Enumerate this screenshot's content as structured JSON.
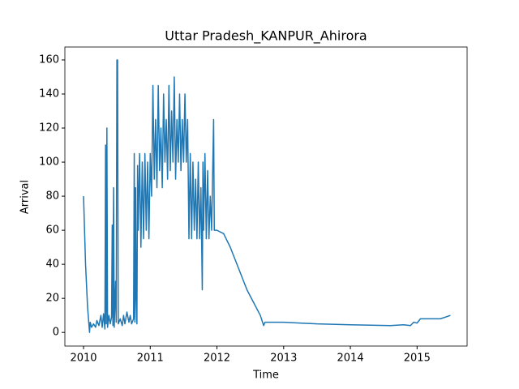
{
  "chart_data": {
    "type": "line",
    "title": "Uttar Pradesh_KANPUR_Ahirora",
    "x_label": "Time",
    "y_label": "Arrival",
    "x": [
      2010.0,
      2010.03,
      2010.06,
      2010.08,
      2010.09,
      2010.1,
      2010.12,
      2010.15,
      2010.18,
      2010.2,
      2010.23,
      2010.26,
      2010.28,
      2010.3,
      2010.32,
      2010.33,
      2010.34,
      2010.35,
      2010.36,
      2010.38,
      2010.4,
      2010.42,
      2010.43,
      2010.44,
      2010.45,
      2010.46,
      2010.48,
      2010.49,
      2010.5,
      2010.51,
      2010.52,
      2010.55,
      2010.58,
      2010.6,
      2010.62,
      2010.65,
      2010.68,
      2010.7,
      2010.72,
      2010.75,
      2010.76,
      2010.77,
      2010.78,
      2010.79,
      2010.8,
      2010.81,
      2010.82,
      2010.84,
      2010.86,
      2010.88,
      2010.9,
      2010.92,
      2010.94,
      2010.96,
      2010.98,
      2011.0,
      2011.02,
      2011.04,
      2011.06,
      2011.08,
      2011.1,
      2011.12,
      2011.14,
      2011.16,
      2011.18,
      2011.2,
      2011.22,
      2011.24,
      2011.26,
      2011.28,
      2011.3,
      2011.32,
      2011.34,
      2011.36,
      2011.38,
      2011.4,
      2011.42,
      2011.44,
      2011.46,
      2011.48,
      2011.5,
      2011.52,
      2011.54,
      2011.56,
      2011.58,
      2011.6,
      2011.62,
      2011.64,
      2011.66,
      2011.68,
      2011.7,
      2011.72,
      2011.74,
      2011.76,
      2011.78,
      2011.79,
      2011.8,
      2011.82,
      2011.84,
      2011.86,
      2011.88,
      2011.9,
      2011.92,
      2011.95,
      2011.96,
      2012.0,
      2012.1,
      2012.2,
      2012.3,
      2012.45,
      2012.65,
      2012.7,
      2012.72,
      2013.0,
      2013.5,
      2014.0,
      2014.6,
      2014.8,
      2014.9,
      2014.95,
      2015.0,
      2015.05,
      2015.15,
      2015.35,
      2015.5
    ],
    "series": [
      {
        "name": "Arrival",
        "color": "#1f77b4",
        "values": [
          80,
          40,
          15,
          5,
          0,
          6,
          3,
          5,
          3,
          7,
          4,
          10,
          3,
          11,
          2,
          110,
          5,
          120,
          3,
          10,
          5,
          9,
          63,
          4,
          85,
          3,
          30,
          6,
          160,
          160,
          5,
          8,
          4,
          10,
          5,
          12,
          6,
          10,
          5,
          8,
          105,
          6,
          85,
          20,
          5,
          98,
          60,
          105,
          50,
          100,
          55,
          105,
          60,
          100,
          55,
          105,
          80,
          145,
          90,
          125,
          85,
          145,
          95,
          120,
          85,
          140,
          100,
          125,
          90,
          145,
          95,
          130,
          100,
          150,
          90,
          125,
          100,
          140,
          95,
          125,
          100,
          140,
          100,
          125,
          55,
          105,
          55,
          100,
          60,
          90,
          55,
          100,
          55,
          85,
          25,
          100,
          60,
          105,
          55,
          95,
          55,
          80,
          60,
          125,
          60,
          60,
          58,
          50,
          40,
          25,
          10,
          4,
          6,
          6,
          5,
          4.5,
          4,
          4.5,
          4,
          6,
          5.5,
          8,
          8,
          8,
          10
        ]
      }
    ],
    "xlim": [
      2009.72,
      2015.75
    ],
    "xticks": [
      2010,
      2011,
      2012,
      2013,
      2014,
      2015
    ],
    "ylim": [
      -8,
      167.6
    ],
    "yticks": [
      0,
      20,
      40,
      60,
      80,
      100,
      120,
      140,
      160
    ]
  }
}
